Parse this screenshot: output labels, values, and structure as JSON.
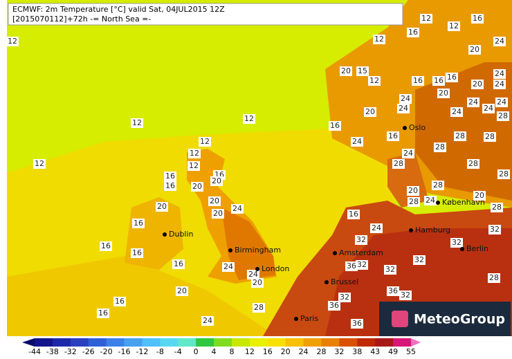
{
  "header": {
    "line1": "ECMWF: 2m Temperature [°C] valid Sat, 04JUL2015 12Z",
    "line2": "[2015070112]+72h -= North Sea =-"
  },
  "cities": [
    "Oslo",
    "København",
    "Hamburg",
    "Berlin",
    "Amsterdam",
    "Brussel",
    "Paris",
    "London",
    "Birmingham",
    "Dublin"
  ],
  "contour_labels": [
    12,
    12,
    16,
    12,
    12,
    16,
    20,
    24,
    20,
    15,
    12,
    16,
    16,
    16,
    20,
    20,
    24,
    24,
    24,
    24,
    20,
    24,
    24,
    24,
    24,
    28,
    12,
    12,
    16,
    24,
    12,
    12,
    12,
    12,
    16,
    16,
    16,
    20,
    20,
    16,
    24,
    28,
    28,
    28,
    28,
    28,
    28,
    20,
    20,
    20,
    24,
    16,
    16,
    24,
    16,
    16,
    16,
    24,
    24,
    20,
    20,
    16,
    16,
    24,
    28,
    32,
    32,
    36,
    32,
    36,
    32,
    32,
    36,
    32,
    36,
    32,
    32,
    28,
    28,
    24,
    20,
    28,
    20,
    28
  ],
  "legend": {
    "ticks": [
      -44,
      -38,
      -32,
      -26,
      -20,
      -16,
      -12,
      -8,
      -4,
      0,
      4,
      8,
      12,
      16,
      20,
      24,
      28,
      32,
      38,
      43,
      49,
      55
    ],
    "colors": [
      "#0a0a6e",
      "#14148c",
      "#1e28a8",
      "#2840c0",
      "#3060d8",
      "#3c80e8",
      "#48a0f0",
      "#50c0f8",
      "#58d8f0",
      "#60e8c8",
      "#30c840",
      "#80dc20",
      "#c8e800",
      "#e8f000",
      "#f8e000",
      "#f8c000",
      "#f0a000",
      "#e88000",
      "#d85000",
      "#c02800",
      "#a81818",
      "#d81878",
      "#f070c0"
    ]
  },
  "logo": "MeteoGroup"
}
